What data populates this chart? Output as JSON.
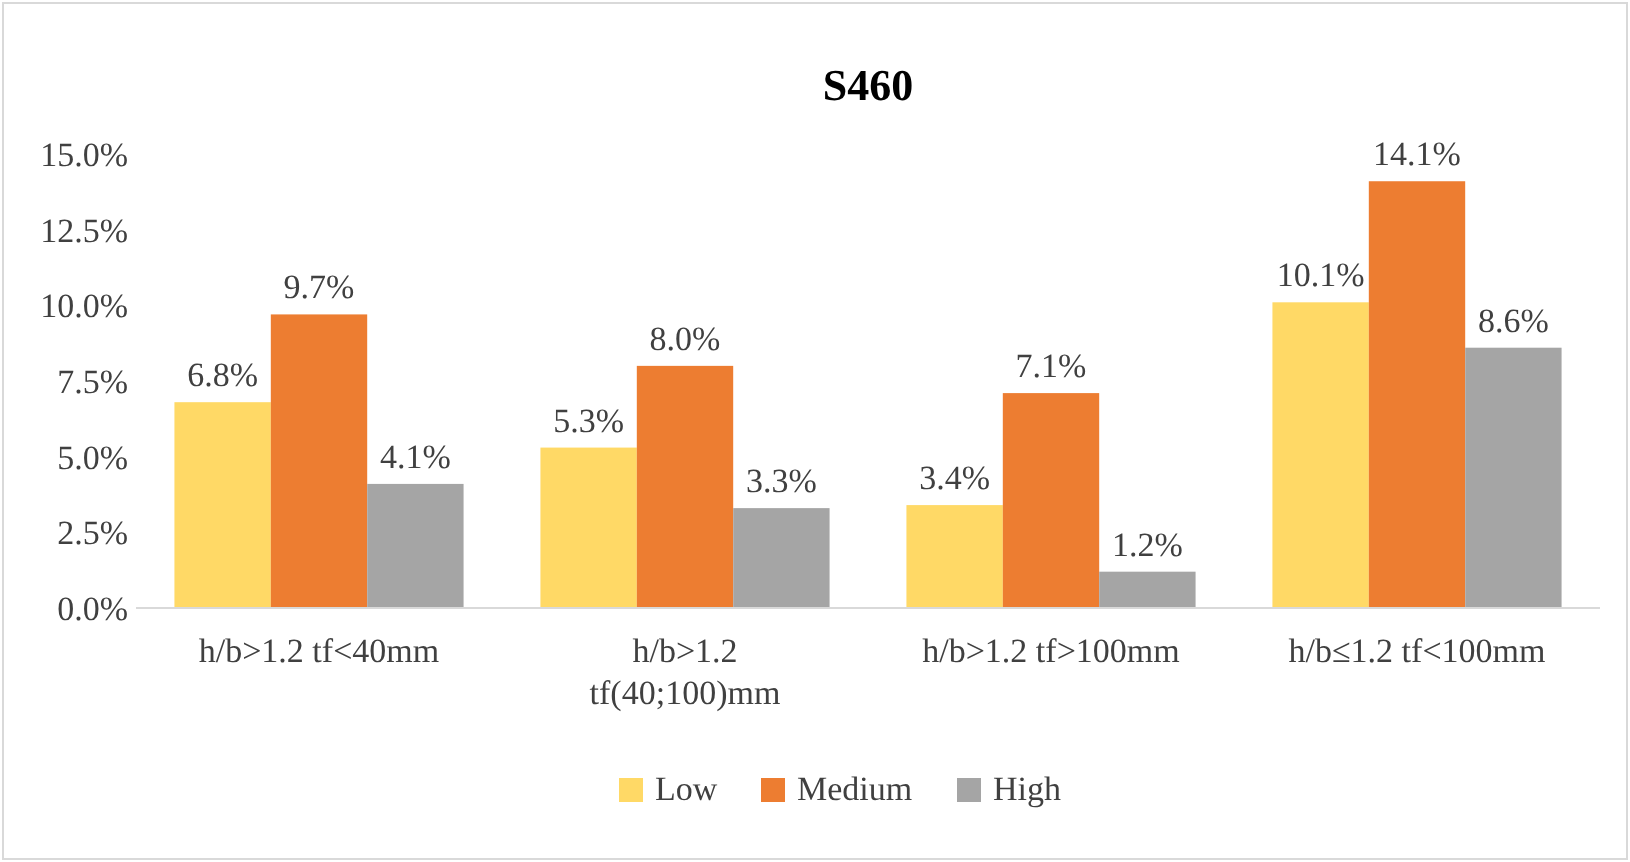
{
  "chart_data": {
    "type": "bar",
    "title": "S460",
    "categories": [
      "h/b>1.2 tf<40mm",
      "h/b>1.2 tf(40;100)mm",
      "h/b>1.2  tf>100mm",
      "h/b≤1.2 tf<100mm"
    ],
    "series": [
      {
        "name": "Low",
        "color": "#ffd966",
        "values": [
          6.8,
          5.3,
          3.4,
          10.1
        ],
        "value_labels": [
          "6.8%",
          "5.3%",
          "3.4%",
          "10.1%"
        ]
      },
      {
        "name": "Medium",
        "color": "#ed7d31",
        "values": [
          9.7,
          8.0,
          7.1,
          14.1
        ],
        "value_labels": [
          "9.7%",
          "8.0%",
          "7.1%",
          "14.1%"
        ]
      },
      {
        "name": "High",
        "color": "#a5a5a5",
        "values": [
          4.1,
          3.3,
          1.2,
          8.6
        ],
        "value_labels": [
          "4.1%",
          "3.3%",
          "1.2%",
          "8.6%"
        ]
      }
    ],
    "ylim": [
      0,
      15
    ],
    "yticks": [
      {
        "value": 0,
        "label": "0.0%"
      },
      {
        "value": 2.5,
        "label": "2.5%"
      },
      {
        "value": 5,
        "label": "5.0%"
      },
      {
        "value": 7.5,
        "label": "7.5%"
      },
      {
        "value": 10,
        "label": "10.0%"
      },
      {
        "value": 12.5,
        "label": "12.5%"
      },
      {
        "value": 15,
        "label": "15.0%"
      }
    ],
    "grid": false,
    "legend": "bottom"
  }
}
